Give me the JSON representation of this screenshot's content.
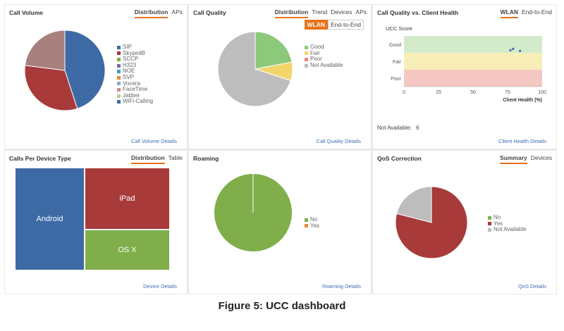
{
  "panels": {
    "call_volume": {
      "title": "Call Volume",
      "tabs": [
        "Distribution",
        "APs"
      ],
      "legend": [
        {
          "label": "SIP",
          "color": "#3d6aa5"
        },
        {
          "label": "Skype4B",
          "color": "#a83a3a"
        },
        {
          "label": "SCCP",
          "color": "#7fae4a"
        },
        {
          "label": "H323",
          "color": "#7c6aa8"
        },
        {
          "label": "NOE",
          "color": "#3a9fc2"
        },
        {
          "label": "SVP",
          "color": "#e8873a"
        },
        {
          "label": "Vocera",
          "color": "#8fa8d0"
        },
        {
          "label": "FaceTime",
          "color": "#d78a8a"
        },
        {
          "label": "Jabber",
          "color": "#b5cf8a"
        },
        {
          "label": "WiFi-Calling",
          "color": "#3d6aa5"
        }
      ],
      "link": "Call Volume Details"
    },
    "call_quality": {
      "title": "Call Quality",
      "tabs": [
        "Distribution",
        "Trend",
        "Devices",
        "APs"
      ],
      "subtabs": [
        "WLAN",
        "End-to-End"
      ],
      "legend": [
        {
          "label": "Good",
          "color": "#8cc97a"
        },
        {
          "label": "Fair",
          "color": "#f2d66b"
        },
        {
          "label": "Poor",
          "color": "#e8837a"
        },
        {
          "label": "Not Available",
          "color": "#bdbdbd"
        }
      ],
      "link": "Call Quality Details"
    },
    "client_health": {
      "title": "Call Quality vs. Client Health",
      "tabs": [
        "WLAN",
        "End-to-End"
      ],
      "not_available_label": "Not Available:",
      "not_available_value": "6",
      "link": "Client Health Details"
    },
    "device_type": {
      "title": "Calls Per Device Type",
      "tabs": [
        "Distribution",
        "Table"
      ],
      "tiles": [
        "Android",
        "iPad",
        "OS X"
      ],
      "link": "Device Details"
    },
    "roaming": {
      "title": "Roaming",
      "legend": [
        {
          "label": "No",
          "color": "#7fae4a"
        },
        {
          "label": "Yes",
          "color": "#e8873a"
        }
      ],
      "link": "Roaming Details"
    },
    "qos": {
      "title": "QoS Correction",
      "tabs": [
        "Summary",
        "Devices"
      ],
      "legend": [
        {
          "label": "No",
          "color": "#7fae4a"
        },
        {
          "label": "Yes",
          "color": "#a83a3a"
        },
        {
          "label": "Not Available",
          "color": "#bdbdbd"
        }
      ],
      "link": "QoS Details"
    }
  },
  "chart_data": [
    {
      "type": "pie",
      "id": "call_volume",
      "labels": [
        "SIP",
        "Skype4B",
        "SCCP"
      ],
      "values": [
        45,
        32,
        23
      ],
      "colors": [
        "#3d6aa5",
        "#a83a3a",
        "#a8807e"
      ]
    },
    {
      "type": "pie",
      "id": "call_quality",
      "labels": [
        "Good",
        "Fair",
        "Poor",
        "Not Available"
      ],
      "values": [
        22,
        8,
        0,
        70
      ],
      "colors": [
        "#8cc97a",
        "#f2d66b",
        "#e8837a",
        "#bdbdbd"
      ]
    },
    {
      "type": "scatter",
      "id": "client_health",
      "title": "UCC Score",
      "xlabel": "Client Health (%)",
      "xlim": [
        0,
        100
      ],
      "xticks": [
        0,
        25,
        50,
        75,
        100
      ],
      "y_categories": [
        "Poor",
        "Fair",
        "Good"
      ],
      "band_colors": [
        "#f4c7c3",
        "#f7eeb8",
        "#d4ebcb"
      ],
      "points": [
        {
          "x": 77,
          "y": "Good"
        },
        {
          "x": 79,
          "y": "Good"
        },
        {
          "x": 84,
          "y": "Good"
        }
      ]
    },
    {
      "type": "treemap",
      "id": "device_type",
      "labels": [
        "Android",
        "iPad",
        "OS X"
      ],
      "values": [
        45,
        33,
        22
      ],
      "colors": [
        "#3d6aa5",
        "#a83a3a",
        "#7fae4a"
      ]
    },
    {
      "type": "pie",
      "id": "roaming",
      "labels": [
        "No",
        "Yes"
      ],
      "values": [
        100,
        0
      ],
      "colors": [
        "#7fae4a",
        "#e8873a"
      ]
    },
    {
      "type": "pie",
      "id": "qos",
      "labels": [
        "No",
        "Yes",
        "Not Available"
      ],
      "values": [
        0,
        79,
        21
      ],
      "colors": [
        "#7fae4a",
        "#a83a3a",
        "#bdbdbd"
      ]
    }
  ],
  "caption": "Figure 5: UCC dashboard"
}
